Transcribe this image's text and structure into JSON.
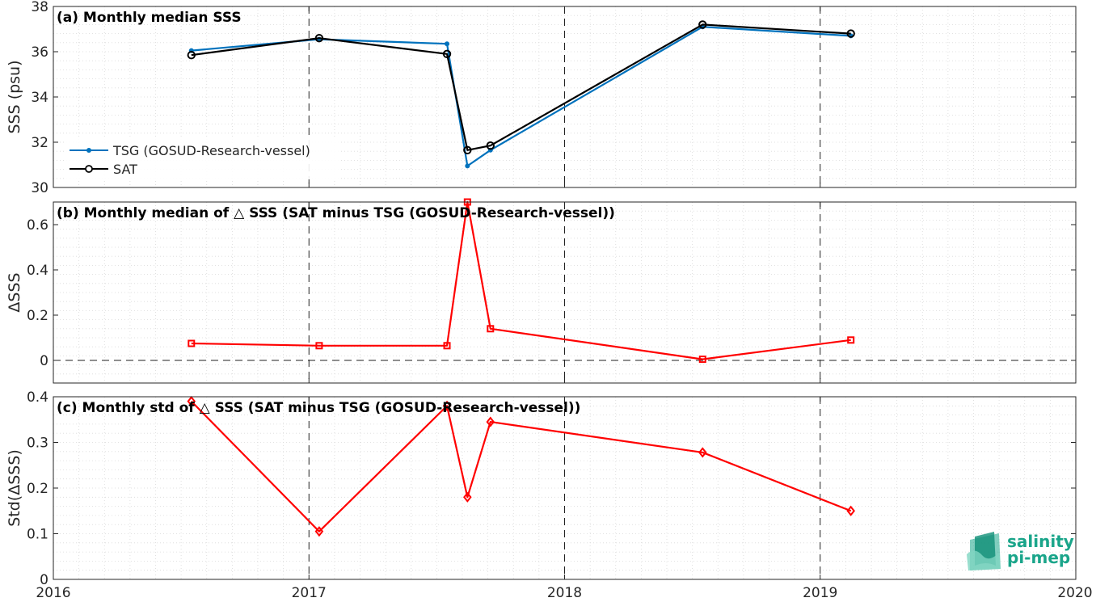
{
  "colors": {
    "tsg": "#0072BD",
    "sat": "#000000",
    "delta": "#FF0000",
    "grid": "#d9d9d9",
    "logo": "#1aa58a"
  },
  "x_axis": {
    "min": 2016,
    "max": 2020,
    "ticks": [
      2016,
      2017,
      2018,
      2019,
      2020
    ],
    "tick_labels": [
      "2016",
      "2017",
      "2018",
      "2019",
      "2020"
    ]
  },
  "legend": {
    "tsg": "TSG (GOSUD-Research-vessel)",
    "sat": "SAT"
  },
  "logo": {
    "line1": "salinity",
    "line2": "pi-mep"
  },
  "chart_data": [
    {
      "type": "line",
      "title": "(a) Monthly median SSS",
      "ylabel": "SSS (psu)",
      "ylim": [
        30,
        38
      ],
      "yticks": [
        30,
        32,
        34,
        36,
        38
      ],
      "legend_position": "lower-left",
      "series": [
        {
          "name": "TSG (GOSUD-Research-vessel)",
          "marker": "dot",
          "x": [
            2016.54,
            2017.04,
            2017.54,
            2017.62,
            2017.71,
            2018.54,
            2019.12
          ],
          "y": [
            36.05,
            36.55,
            36.35,
            30.95,
            31.65,
            37.1,
            36.7
          ]
        },
        {
          "name": "SAT",
          "marker": "circle",
          "x": [
            2016.54,
            2017.04,
            2017.54,
            2017.62,
            2017.71,
            2018.54,
            2019.12
          ],
          "y": [
            35.85,
            36.6,
            35.9,
            31.65,
            31.85,
            37.2,
            36.8
          ]
        }
      ]
    },
    {
      "type": "line",
      "title": "(b) Monthly median of △ SSS (SAT minus TSG (GOSUD-Research-vessel))",
      "ylabel": "ΔSSS",
      "ylim": [
        -0.1,
        0.7
      ],
      "yticks": [
        0,
        0.2,
        0.4,
        0.6
      ],
      "reference_line": 0,
      "series": [
        {
          "marker": "square",
          "x": [
            2016.54,
            2017.04,
            2017.54,
            2017.62,
            2017.71,
            2018.54,
            2019.12
          ],
          "y": [
            0.075,
            0.065,
            0.065,
            0.7,
            0.14,
            0.005,
            0.09
          ]
        }
      ]
    },
    {
      "type": "line",
      "title": "(c) Monthly std of △ SSS (SAT minus TSG (GOSUD-Research-vessel))",
      "ylabel": "Std(ΔSSS)",
      "ylim": [
        0,
        0.4
      ],
      "yticks": [
        0,
        0.1,
        0.2,
        0.3,
        0.4
      ],
      "series": [
        {
          "marker": "diamond",
          "x": [
            2016.54,
            2017.04,
            2017.54,
            2017.62,
            2017.71,
            2018.54,
            2019.12
          ],
          "y": [
            0.39,
            0.105,
            0.38,
            0.18,
            0.345,
            0.278,
            0.15
          ]
        }
      ]
    }
  ]
}
